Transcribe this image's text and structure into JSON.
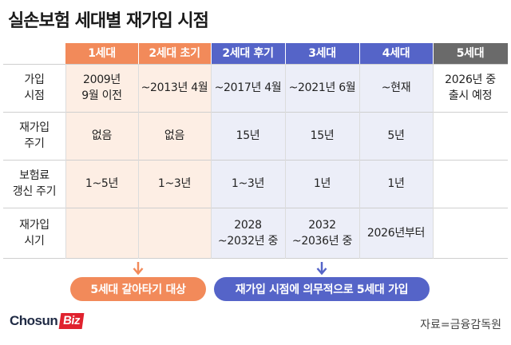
{
  "title": "실손보험 세대별 재가입 시점",
  "headers": [
    "1세대",
    "2세대 초기",
    "2세대 후기",
    "3세대",
    "4세대",
    "5세대"
  ],
  "rows": [
    {
      "label": [
        "가입",
        "시점"
      ],
      "cells": [
        [
          "2009년",
          "9월 이전"
        ],
        [
          "~2013년 4월"
        ],
        [
          "~2017년 4월"
        ],
        [
          "~2021년 6월"
        ],
        [
          "~현재"
        ],
        [
          "2026년 중",
          "출시 예정"
        ]
      ]
    },
    {
      "label": [
        "재가입",
        "주기"
      ],
      "cells": [
        [
          "없음"
        ],
        [
          "없음"
        ],
        [
          "15년"
        ],
        [
          "15년"
        ],
        [
          "5년"
        ],
        [
          ""
        ]
      ]
    },
    {
      "label": [
        "보험료",
        "갱신 주기"
      ],
      "cells": [
        [
          "1~5년"
        ],
        [
          "1~3년"
        ],
        [
          "1~3년"
        ],
        [
          "1년"
        ],
        [
          "1년"
        ],
        [
          ""
        ]
      ]
    },
    {
      "label": [
        "재가입",
        "시기"
      ],
      "cells": [
        [
          ""
        ],
        [
          ""
        ],
        [
          "2028",
          "~2032년 중"
        ],
        [
          "2032",
          "~2036년 중"
        ],
        [
          "2026년부터"
        ],
        [
          ""
        ]
      ]
    }
  ],
  "notes": {
    "orange": "5세대 갈아타기 대상",
    "blue": "재가입 시점에 의무적으로 5세대 가입"
  },
  "logo": {
    "main": "Chosun",
    "accent": "Biz"
  },
  "source": "자료=금융감독원",
  "colors": {
    "orange": "#f28a5a",
    "blue": "#5564c8",
    "gray": "#6a6a6a",
    "orange_bg": "#fdeee4",
    "blue_bg": "#eceef8"
  }
}
